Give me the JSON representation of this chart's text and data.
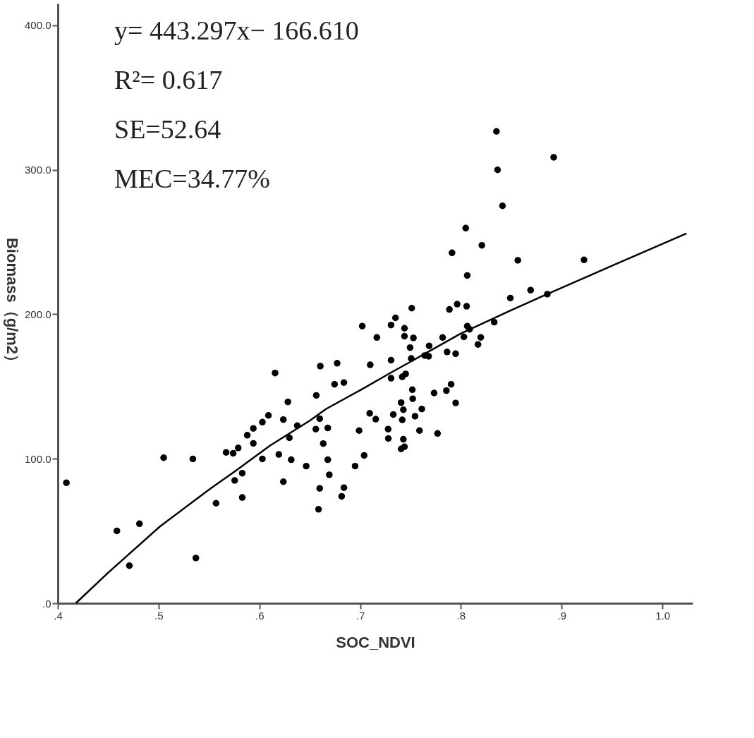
{
  "chart_data": {
    "type": "scatter",
    "xlabel": "SOC_NDVI",
    "ylabel": "Biomass（g/m2）",
    "annotations": [
      "y= 443.297x− 166.610",
      "R²= 0.617",
      "SE=52.64",
      "MEC=34.77%"
    ],
    "xlim": [
      0.4,
      1.03
    ],
    "ylim": [
      0,
      415
    ],
    "xticks": [
      {
        "value": 0.4,
        "label": ".4"
      },
      {
        "value": 0.5,
        "label": ".5"
      },
      {
        "value": 0.6,
        "label": ".6"
      },
      {
        "value": 0.7,
        "label": ".7"
      },
      {
        "value": 0.8,
        "label": ".8"
      },
      {
        "value": 0.9,
        "label": ".9"
      },
      {
        "value": 1.0,
        "label": "1.0"
      }
    ],
    "yticks": [
      {
        "value": 0,
        "label": ".0"
      },
      {
        "value": 100,
        "label": "100.0"
      },
      {
        "value": 200,
        "label": "200.0"
      },
      {
        "value": 300,
        "label": "300.0"
      },
      {
        "value": 400,
        "label": "400.0"
      }
    ],
    "grid": false,
    "marker": "circle",
    "series": [
      {
        "type": "scatter",
        "color": "#000000",
        "x": [
          0.4085,
          0.4586,
          0.481,
          0.471,
          0.505,
          0.534,
          0.537,
          0.557,
          0.567,
          0.574,
          0.579,
          0.5755,
          0.583,
          0.583,
          0.588,
          0.594,
          0.594,
          0.603,
          0.609,
          0.603,
          0.6156,
          0.6238,
          0.6283,
          0.6193,
          0.6238,
          0.6316,
          0.6298,
          0.6376,
          0.6465,
          0.6565,
          0.6605,
          0.6599,
          0.656,
          0.6679,
          0.6634,
          0.6679,
          0.6694,
          0.6599,
          0.6587,
          0.6839,
          0.6817,
          0.6746,
          0.6839,
          0.6772,
          0.695,
          0.704,
          0.699,
          0.7021,
          0.71,
          0.7166,
          0.7095,
          0.7155,
          0.7278,
          0.728,
          0.7329,
          0.7307,
          0.7307,
          0.7307,
          0.7351,
          0.7407,
          0.7429,
          0.7418,
          0.7429,
          0.7407,
          0.744,
          0.7418,
          0.7452,
          0.744,
          0.744,
          0.7529,
          0.7496,
          0.7507,
          0.7512,
          0.7518,
          0.7522,
          0.7545,
          0.7612,
          0.7589,
          0.7685,
          0.7641,
          0.768,
          0.7734,
          0.7768,
          0.7819,
          0.7863,
          0.7948,
          0.7856,
          0.7903,
          0.7948,
          0.7886,
          0.7963,
          0.8057,
          0.8063,
          0.803,
          0.8353,
          0.8921,
          0.8364,
          0.8413,
          0.8048,
          0.8208,
          0.7912,
          0.8063,
          0.8565,
          0.9222,
          0.8692,
          0.8491,
          0.8858,
          0.8331,
          0.8086,
          0.8197,
          0.817
        ],
        "values": [
          83.4,
          50.1,
          55,
          26,
          100.7,
          99.9,
          31.3,
          69.2,
          104.4,
          103.8,
          107.5,
          85,
          90,
          73.2,
          116.3,
          121,
          110.6,
          125.3,
          130,
          99.9,
          159.3,
          127.1,
          139.3,
          103,
          84.1,
          99.3,
          114.5,
          122.9,
          94.9,
          143.8,
          164.1,
          127.7,
          120.5,
          121.3,
          110.5,
          99.3,
          88.9,
          79.5,
          65,
          80,
          74,
          151.5,
          152.7,
          166.1,
          94.9,
          102.3,
          119.5,
          191.8,
          165,
          183.9,
          131.4,
          127.4,
          120.5,
          114,
          130.6,
          168.2,
          155.7,
          192.5,
          197.5,
          138.8,
          133.9,
          126.9,
          113.5,
          106.8,
          108.3,
          156.7,
          158.7,
          190.3,
          184.8,
          183.6,
          176.9,
          169.4,
          204.2,
          147.8,
          141.5,
          129.4,
          134.4,
          119.5,
          178.1,
          171.4,
          170.9,
          145.5,
          117.5,
          183.9,
          173.9,
          172.7,
          147.1,
          151.5,
          138.6,
          203.3,
          207,
          205.5,
          191.8,
          184.3,
          326.5,
          308.6,
          299.9,
          275,
          259.6,
          247.7,
          242.5,
          226.8,
          237.3,
          237.6,
          216.7,
          211.2,
          213.9,
          194.5,
          189.6,
          184,
          179.1
        ]
      },
      {
        "type": "line",
        "color": "#000000",
        "marker": "none",
        "x": [
          0.4178,
          0.45,
          0.5013,
          0.55,
          0.577,
          0.6104,
          0.65,
          0.6661,
          0.7,
          0.7329,
          0.75,
          0.7997,
          0.85,
          0.8865,
          0.95,
          1.0239
        ],
        "values": [
          0,
          21.2,
          53.1,
          78.6,
          91.9,
          109,
          126.3,
          134.4,
          147.4,
          160.5,
          167.1,
          186.6,
          202.8,
          214.2,
          233.6,
          255.9
        ]
      }
    ]
  }
}
